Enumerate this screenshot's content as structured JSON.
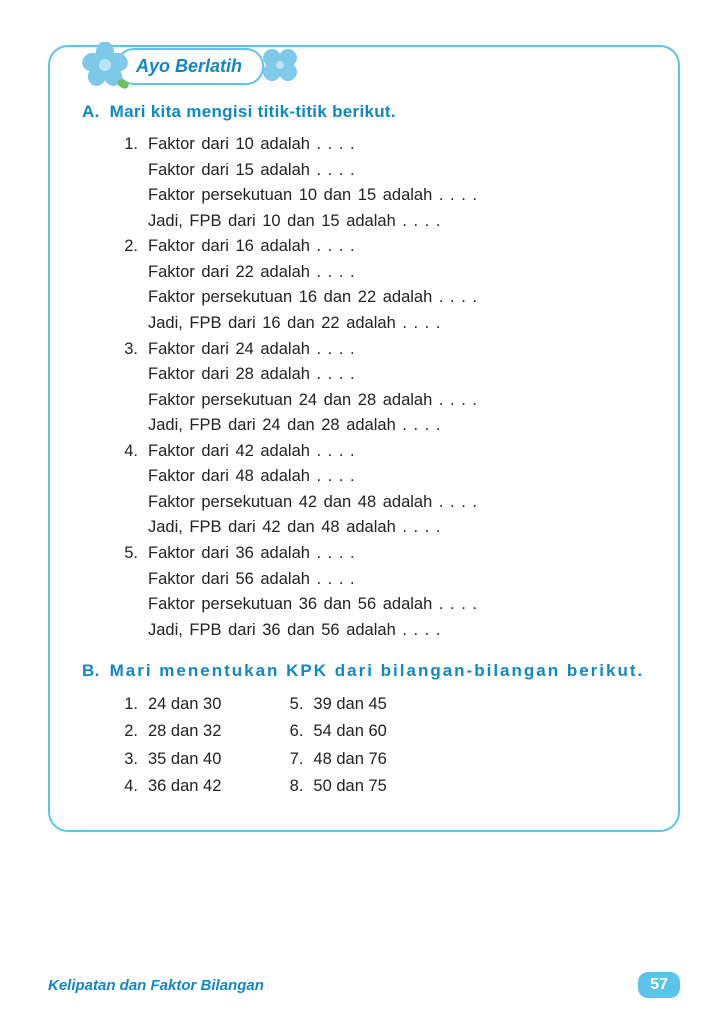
{
  "colors": {
    "border": "#5bc4e8",
    "heading": "#1088c4",
    "body_text": "#222222",
    "page_badge_bg": "#5bc4e8",
    "page_badge_text": "#ffffff",
    "flower_petal": "#7fc9e8",
    "flower_center": "#b8e4f5",
    "leaf": "#6bc060"
  },
  "banner": {
    "title": "Ayo Berlatih"
  },
  "section_a": {
    "letter": "A.",
    "heading": "Mari kita mengisi titik-titik berikut.",
    "questions": [
      {
        "num": "1.",
        "lines": [
          "Faktor dari  10  adalah . . . .",
          "Faktor dari  15  adalah . . . .",
          "Faktor persekutuan  10  dan  15  adalah . . . .",
          "Jadi, FPB dari  10  dan  15  adalah . . . ."
        ]
      },
      {
        "num": "2.",
        "lines": [
          "Faktor dari  16  adalah . . . .",
          "Faktor dari  22  adalah . . . .",
          "Faktor persekutuan  16  dan  22  adalah . . . .",
          "Jadi, FPB dari  16  dan  22  adalah . . . ."
        ]
      },
      {
        "num": "3.",
        "lines": [
          "Faktor dari  24  adalah . . . .",
          "Faktor dari  28  adalah . . . .",
          "Faktor persekutuan  24  dan  28  adalah . . . .",
          "Jadi, FPB dari  24  dan  28  adalah . . . ."
        ]
      },
      {
        "num": "4.",
        "lines": [
          "Faktor dari  42  adalah . . . .",
          "Faktor dari  48  adalah . . . .",
          "Faktor persekutuan  42  dan  48  adalah . . . .",
          "Jadi, FPB dari  42  dan  48  adalah . . . ."
        ]
      },
      {
        "num": "5.",
        "lines": [
          "Faktor dari  36  adalah . . . .",
          "Faktor dari  56  adalah . . . .",
          "Faktor persekutuan  36  dan  56  adalah . . . .",
          "Jadi, FPB dari  36  dan  56  adalah . . . ."
        ]
      }
    ]
  },
  "section_b": {
    "letter": "B.",
    "heading": "Mari menentukan KPK dari bilangan-bilangan berikut.",
    "left": [
      {
        "num": "1.",
        "text": "24  dan  30"
      },
      {
        "num": "2.",
        "text": "28  dan  32"
      },
      {
        "num": "3.",
        "text": "35  dan  40"
      },
      {
        "num": "4.",
        "text": "36  dan  42"
      }
    ],
    "right": [
      {
        "num": "5.",
        "text": "39  dan  45"
      },
      {
        "num": "6.",
        "text": "54  dan  60"
      },
      {
        "num": "7.",
        "text": "48  dan  76"
      },
      {
        "num": "8.",
        "text": "50  dan  75"
      }
    ]
  },
  "footer": {
    "chapter_title": "Kelipatan dan Faktor Bilangan",
    "page_number": "57"
  }
}
